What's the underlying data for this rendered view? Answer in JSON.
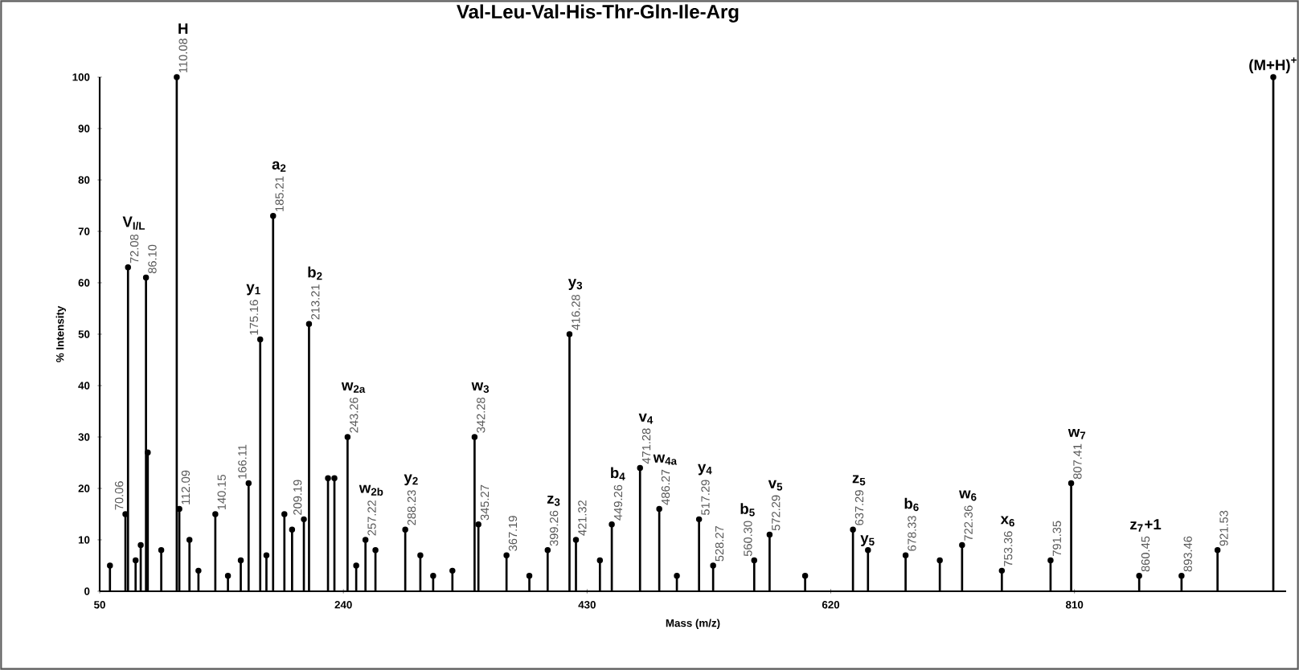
{
  "chart_data": {
    "type": "lollipop",
    "marker": "circle",
    "title": "Val-Leu-Val-His-Thr-Gln-Ile-Arg",
    "xlabel": "Mass (m/z)",
    "ylabel": "% Intensity",
    "color": "#000000",
    "x": [
      58,
      70.06,
      72.08,
      78,
      82,
      86.1,
      87.5,
      98,
      110.08,
      112.09,
      120,
      127,
      140.15,
      150,
      160,
      166.11,
      175.16,
      180,
      185.21,
      194,
      200,
      209.19,
      213.21,
      228,
      233,
      243.26,
      250,
      257.22,
      265,
      288.23,
      300,
      310,
      325,
      342.28,
      345.27,
      367.19,
      385,
      399.26,
      416.28,
      421.32,
      440,
      449.26,
      471.28,
      486.27,
      500,
      517.29,
      528.27,
      560.3,
      572.29,
      600,
      637.29,
      649,
      678.33,
      705,
      722.36,
      753.36,
      791.35,
      807.41,
      860.45,
      893.46,
      921.53,
      965
    ],
    "values": [
      5,
      15,
      63,
      6,
      9,
      61,
      27,
      8,
      100,
      16,
      10,
      4,
      15,
      3,
      6,
      21,
      49,
      7,
      73,
      15,
      12,
      14,
      52,
      22,
      22,
      30,
      5,
      10,
      8,
      12,
      7,
      3,
      4,
      30,
      13,
      7,
      3,
      8,
      50,
      10,
      6,
      13,
      24,
      16,
      3,
      14,
      5,
      6,
      11,
      3,
      12,
      8,
      7,
      6,
      9,
      4,
      6,
      21,
      3,
      3,
      8,
      100
    ],
    "xlim": [
      50,
      975
    ],
    "ylim": [
      0,
      100
    ],
    "xticks": [
      50,
      240,
      430,
      620,
      810
    ],
    "yticks": [
      0,
      10,
      20,
      30,
      40,
      50,
      60,
      70,
      80,
      90,
      100
    ],
    "annotations": [
      {
        "text": "70.06",
        "x": 70.06,
        "y": 15
      },
      {
        "text": "72.08",
        "x": 72.08,
        "y": 63
      },
      {
        "text": "V$_{I/L}$",
        "x": 72.08,
        "y": 63
      },
      {
        "text": "86.10",
        "x": 86.1,
        "y": 61
      },
      {
        "text": "110.08",
        "x": 110.08,
        "y": 100
      },
      {
        "text": "H",
        "x": 110.08,
        "y": 100
      },
      {
        "text": "112.09",
        "x": 112.09,
        "y": 16
      },
      {
        "text": "140.15",
        "x": 140.15,
        "y": 15
      },
      {
        "text": "166.11",
        "x": 166.11,
        "y": 21
      },
      {
        "text": "175.16",
        "x": 175.16,
        "y": 49
      },
      {
        "text": "y$_{1}$",
        "x": 175.16,
        "y": 49
      },
      {
        "text": "185.21",
        "x": 185.21,
        "y": 73
      },
      {
        "text": "a$_{2}$",
        "x": 185.21,
        "y": 73
      },
      {
        "text": "209.19",
        "x": 209.19,
        "y": 14
      },
      {
        "text": "213.21",
        "x": 213.21,
        "y": 52
      },
      {
        "text": "b$_{2}$",
        "x": 213.21,
        "y": 52
      },
      {
        "text": "243.26",
        "x": 243.26,
        "y": 30
      },
      {
        "text": "w$_{2a}$",
        "x": 243.26,
        "y": 30
      },
      {
        "text": "257.22",
        "x": 257.22,
        "y": 10
      },
      {
        "text": "w$_{2b}$",
        "x": 257.22,
        "y": 10
      },
      {
        "text": "288.23",
        "x": 288.23,
        "y": 12
      },
      {
        "text": "y$_{2}$",
        "x": 288.23,
        "y": 12
      },
      {
        "text": "342.28",
        "x": 342.28,
        "y": 30
      },
      {
        "text": "w$_{3}$",
        "x": 342.28,
        "y": 30
      },
      {
        "text": "345.27",
        "x": 345.27,
        "y": 13
      },
      {
        "text": "367.19",
        "x": 367.19,
        "y": 7
      },
      {
        "text": "399.26",
        "x": 399.26,
        "y": 8
      },
      {
        "text": "z$_{3}$",
        "x": 399.26,
        "y": 8
      },
      {
        "text": "416.28",
        "x": 416.28,
        "y": 50
      },
      {
        "text": "y$_{3}$",
        "x": 416.28,
        "y": 50
      },
      {
        "text": "421.32",
        "x": 421.32,
        "y": 10
      },
      {
        "text": "449.26",
        "x": 449.26,
        "y": 13
      },
      {
        "text": "b$_{4}$",
        "x": 449.26,
        "y": 13
      },
      {
        "text": "471.28",
        "x": 471.28,
        "y": 24
      },
      {
        "text": "v$_{4}$",
        "x": 471.28,
        "y": 24
      },
      {
        "text": "486.27",
        "x": 486.27,
        "y": 16
      },
      {
        "text": "w$_{4a}$",
        "x": 486.27,
        "y": 16
      },
      {
        "text": "517.29",
        "x": 517.29,
        "y": 14
      },
      {
        "text": "y$_{4}$",
        "x": 517.29,
        "y": 14
      },
      {
        "text": "528.27",
        "x": 528.27,
        "y": 5
      },
      {
        "text": "560.30",
        "x": 560.3,
        "y": 6
      },
      {
        "text": "b$_{5}$",
        "x": 560.3,
        "y": 6
      },
      {
        "text": "572.29",
        "x": 572.29,
        "y": 11
      },
      {
        "text": "v$_{5}$",
        "x": 572.29,
        "y": 11
      },
      {
        "text": "637.29",
        "x": 637.29,
        "y": 12
      },
      {
        "text": "z$_{5}$",
        "x": 637.29,
        "y": 12
      },
      {
        "text": "y$_{5}$",
        "x": 649,
        "y": 8
      },
      {
        "text": "678.33",
        "x": 678.33,
        "y": 7
      },
      {
        "text": "b$_{6}$",
        "x": 678.33,
        "y": 7
      },
      {
        "text": "722.36",
        "x": 722.36,
        "y": 9
      },
      {
        "text": "w$_{6}$",
        "x": 722.36,
        "y": 9
      },
      {
        "text": "753.36",
        "x": 753.36,
        "y": 4
      },
      {
        "text": "x$_{6}$",
        "x": 753.36,
        "y": 4
      },
      {
        "text": "791.35",
        "x": 791.35,
        "y": 6
      },
      {
        "text": "807.41",
        "x": 807.41,
        "y": 21
      },
      {
        "text": "w$_{7}$",
        "x": 807.41,
        "y": 21
      },
      {
        "text": "860.45",
        "x": 860.45,
        "y": 3
      },
      {
        "text": "z$_{7}$+1",
        "x": 860.45,
        "y": 3
      },
      {
        "text": "893.46",
        "x": 893.46,
        "y": 3
      },
      {
        "text": "921.53",
        "x": 921.53,
        "y": 8
      },
      {
        "text": "(M+H)$^{+}$",
        "x": 965,
        "y": 100
      }
    ]
  }
}
